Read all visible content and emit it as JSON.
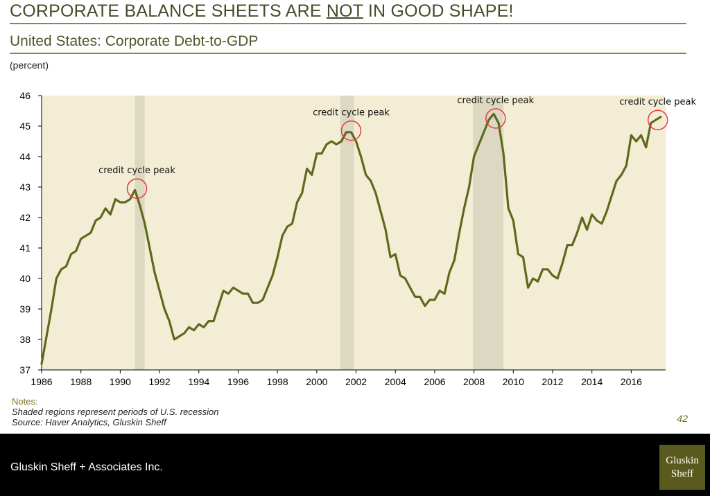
{
  "header": {
    "title_before": "CORPORATE BALANCE SHEETS ARE ",
    "title_emph": "NOT",
    "title_after": " IN GOOD SHAPE!",
    "subtitle": "United States: Corporate Debt-to-GDP",
    "unit_label": "(percent)"
  },
  "notes": {
    "heading": "Notes:",
    "line1": "Shaded regions represent periods of U.S. recession",
    "line2": "Source: Haver Analytics, Gluskin Sheff"
  },
  "page_number": "42",
  "footer": {
    "company": "Gluskin Sheff + Associates Inc.",
    "logo_line1": "Gluskin",
    "logo_line2": "Sheff"
  },
  "chart_data": {
    "type": "line",
    "title": "United States: Corporate Debt-to-GDP",
    "ylabel": "(percent)",
    "xlabel": "",
    "xlim": [
      1986,
      2017.75
    ],
    "ylim": [
      37,
      46
    ],
    "x_ticks": [
      1986,
      1988,
      1990,
      1992,
      1994,
      1996,
      1998,
      2000,
      2002,
      2004,
      2006,
      2008,
      2010,
      2012,
      2014,
      2016
    ],
    "y_ticks": [
      37,
      38,
      39,
      40,
      41,
      42,
      43,
      44,
      45,
      46
    ],
    "grid": false,
    "background_color": "#f3edd6",
    "recession_color": "#ddd8c2",
    "line_color": "#5d6a1d",
    "circle_color": "#e03a3a",
    "recessions": [
      [
        1990.75,
        1991.25
      ],
      [
        2001.2,
        2001.9
      ],
      [
        2007.95,
        2009.5
      ]
    ],
    "series": [
      {
        "x": [
          1986.0,
          1986.25,
          1986.5,
          1986.75,
          1987.0,
          1987.25,
          1987.5,
          1987.75,
          1988.0,
          1988.25,
          1988.5,
          1988.75,
          1989.0,
          1989.25,
          1989.5,
          1989.75,
          1990.0,
          1990.25,
          1990.5,
          1990.75,
          1991.0,
          1991.25,
          1991.5,
          1991.75,
          1992.0,
          1992.25,
          1992.5,
          1992.75,
          1993.0,
          1993.25,
          1993.5,
          1993.75,
          1994.0,
          1994.25,
          1994.5,
          1994.75,
          1995.0,
          1995.25,
          1995.5,
          1995.75,
          1996.0,
          1996.25,
          1996.5,
          1996.75,
          1997.0,
          1997.25,
          1997.5,
          1997.75,
          1998.0,
          1998.25,
          1998.5,
          1998.75,
          1999.0,
          1999.25,
          1999.5,
          1999.75,
          2000.0,
          2000.25,
          2000.5,
          2000.75,
          2001.0,
          2001.25,
          2001.5,
          2001.75,
          2002.0,
          2002.25,
          2002.5,
          2002.75,
          2003.0,
          2003.25,
          2003.5,
          2003.75,
          2004.0,
          2004.25,
          2004.5,
          2004.75,
          2005.0,
          2005.25,
          2005.5,
          2005.75,
          2006.0,
          2006.25,
          2006.5,
          2006.75,
          2007.0,
          2007.25,
          2007.5,
          2007.75,
          2008.0,
          2008.25,
          2008.5,
          2008.75,
          2009.0,
          2009.25,
          2009.5,
          2009.75,
          2010.0,
          2010.25,
          2010.5,
          2010.75,
          2011.0,
          2011.25,
          2011.5,
          2011.75,
          2012.0,
          2012.25,
          2012.5,
          2012.75,
          2013.0,
          2013.25,
          2013.5,
          2013.75,
          2014.0,
          2014.25,
          2014.5,
          2014.75,
          2015.0,
          2015.25,
          2015.5,
          2015.75,
          2016.0,
          2016.25,
          2016.5,
          2016.75,
          2017.0,
          2017.25,
          2017.5
        ],
        "values": [
          37.2,
          38.1,
          39.0,
          40.0,
          40.3,
          40.4,
          40.8,
          40.9,
          41.3,
          41.4,
          41.5,
          41.9,
          42.0,
          42.3,
          42.1,
          42.6,
          42.5,
          42.5,
          42.6,
          42.9,
          42.4,
          41.8,
          41.0,
          40.2,
          39.6,
          39.0,
          38.6,
          38.0,
          38.1,
          38.2,
          38.4,
          38.3,
          38.5,
          38.4,
          38.6,
          38.6,
          39.1,
          39.6,
          39.5,
          39.7,
          39.6,
          39.5,
          39.5,
          39.2,
          39.2,
          39.3,
          39.7,
          40.1,
          40.7,
          41.4,
          41.7,
          41.8,
          42.5,
          42.8,
          43.6,
          43.4,
          44.1,
          44.1,
          44.4,
          44.5,
          44.4,
          44.5,
          44.8,
          44.8,
          44.5,
          44.0,
          43.4,
          43.2,
          42.8,
          42.2,
          41.6,
          40.7,
          40.8,
          40.1,
          40.0,
          39.7,
          39.4,
          39.4,
          39.1,
          39.3,
          39.3,
          39.6,
          39.5,
          40.2,
          40.6,
          41.5,
          42.3,
          43.0,
          44.0,
          44.4,
          44.8,
          45.2,
          45.4,
          45.1,
          44.1,
          42.3,
          41.9,
          40.8,
          40.7,
          39.7,
          40.0,
          39.9,
          40.3,
          40.3,
          40.1,
          40.0,
          40.5,
          41.1,
          41.1,
          41.5,
          42.0,
          41.6,
          42.1,
          41.9,
          41.8,
          42.2,
          42.7,
          43.2,
          43.4,
          43.7,
          44.7,
          44.5,
          44.7,
          44.3,
          45.1,
          45.2,
          45.3
        ]
      }
    ],
    "annotations": [
      {
        "text": "credit cycle peak",
        "x": 1990.85,
        "y": 42.95
      },
      {
        "text": "credit cycle peak",
        "x": 2001.75,
        "y": 44.85
      },
      {
        "text": "credit cycle peak",
        "x": 2009.1,
        "y": 45.25
      },
      {
        "text": "credit cycle peak",
        "x": 2017.35,
        "y": 45.2
      }
    ]
  }
}
